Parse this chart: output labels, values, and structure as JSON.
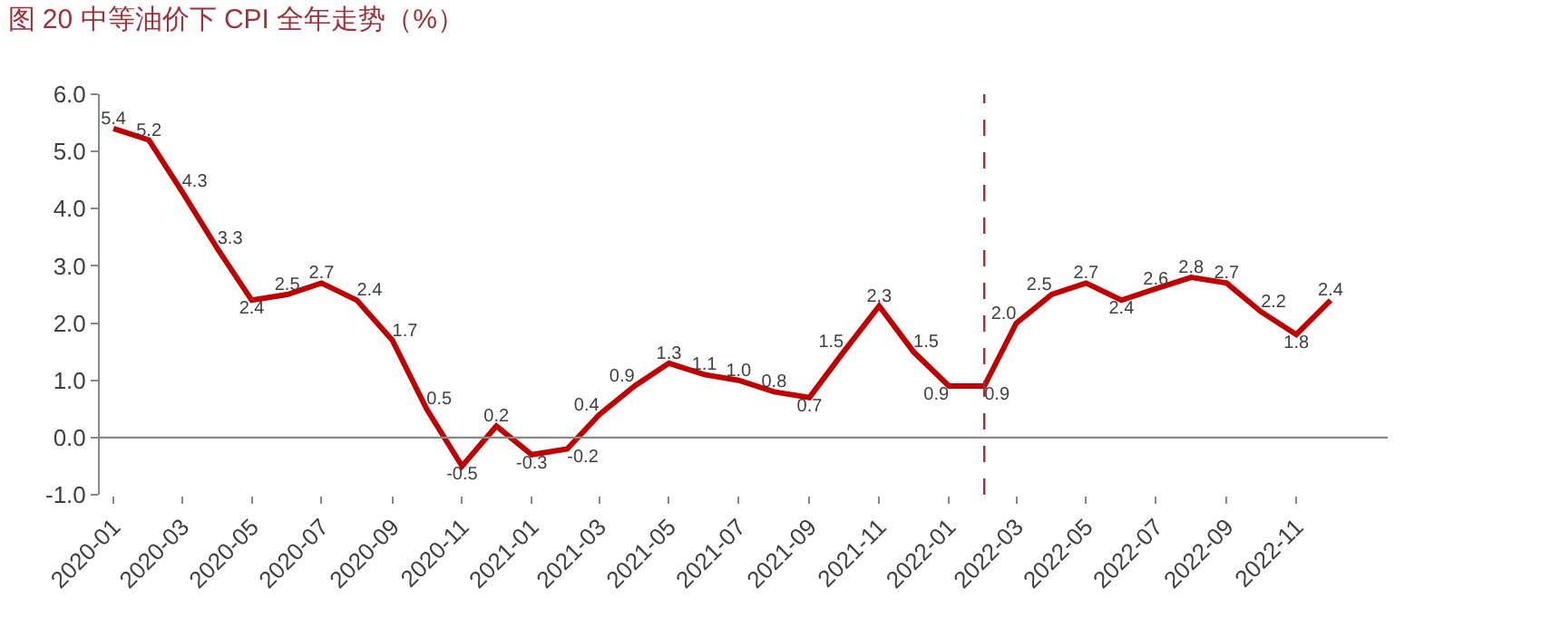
{
  "chart_data": {
    "type": "line",
    "title": "图 20 中等油价下 CPI 全年走势（%）",
    "x": [
      "2020-01",
      "2020-02",
      "2020-03",
      "2020-04",
      "2020-05",
      "2020-06",
      "2020-07",
      "2020-08",
      "2020-09",
      "2020-10",
      "2020-11",
      "2020-12",
      "2021-01",
      "2021-02",
      "2021-03",
      "2021-04",
      "2021-05",
      "2021-06",
      "2021-07",
      "2021-08",
      "2021-09",
      "2021-10",
      "2021-11",
      "2021-12",
      "2022-01",
      "2022-02",
      "2022-03",
      "2022-04",
      "2022-05",
      "2022-06",
      "2022-07",
      "2022-08",
      "2022-09",
      "2022-10",
      "2022-11",
      "2022-12"
    ],
    "series": [
      {
        "color": "#c00000",
        "values": [
          5.4,
          5.2,
          4.3,
          3.3,
          2.4,
          2.5,
          2.7,
          2.4,
          1.7,
          0.5,
          -0.5,
          0.2,
          -0.3,
          -0.2,
          0.4,
          0.9,
          1.3,
          1.1,
          1.0,
          0.8,
          0.7,
          1.5,
          2.3,
          1.5,
          0.9,
          0.9,
          2.0,
          2.5,
          2.7,
          2.4,
          2.6,
          2.8,
          2.7,
          2.2,
          1.8,
          2.4
        ],
        "value_labels": [
          "5.4",
          "5.2",
          "4.3",
          "3.3",
          "2.4",
          "2.5",
          "2.7",
          "2.4",
          "1.7",
          "0.5",
          "-0.5",
          "0.2",
          "-0.3",
          "-0.2",
          "0.4",
          "0.9",
          "1.3",
          "1.1",
          "1.0",
          "0.8",
          "0.7",
          "1.5",
          "2.3",
          "1.5",
          "0.9",
          "0.9",
          "2.0",
          "2.5",
          "2.7",
          "2.4",
          "2.6",
          "2.8",
          "2.7",
          "2.2",
          "1.8",
          "2.4"
        ]
      }
    ],
    "xlim": [
      "2019-12-20",
      "2023-01-20"
    ],
    "xticks": [
      "2020-01",
      "2020-03",
      "2020-05",
      "2020-07",
      "2020-09",
      "2020-11",
      "2021-01",
      "2021-03",
      "2021-05",
      "2021-07",
      "2021-09",
      "2021-11",
      "2022-01",
      "2022-03",
      "2022-05",
      "2022-07",
      "2022-09",
      "2022-11"
    ],
    "ylim": [
      -1,
      6
    ],
    "yticks": [
      {
        "value": -1,
        "label": "-1.0"
      },
      {
        "value": 0,
        "label": "0.0"
      },
      {
        "value": 1,
        "label": "1.0"
      },
      {
        "value": 2,
        "label": "2.0"
      },
      {
        "value": 3,
        "label": "3.0"
      },
      {
        "value": 4,
        "label": "4.0"
      },
      {
        "value": 5,
        "label": "5.0"
      },
      {
        "value": 6,
        "label": "6.0"
      }
    ],
    "ref_lines": [
      {
        "axis": "x",
        "value": "2022-02",
        "color": "#a0303a",
        "line_style": "dashed"
      },
      {
        "axis": "y",
        "value": 0,
        "color": "#888888",
        "line_style": "solid"
      }
    ],
    "grid": false,
    "legend": false,
    "marker": "none",
    "line_style": "solid"
  }
}
